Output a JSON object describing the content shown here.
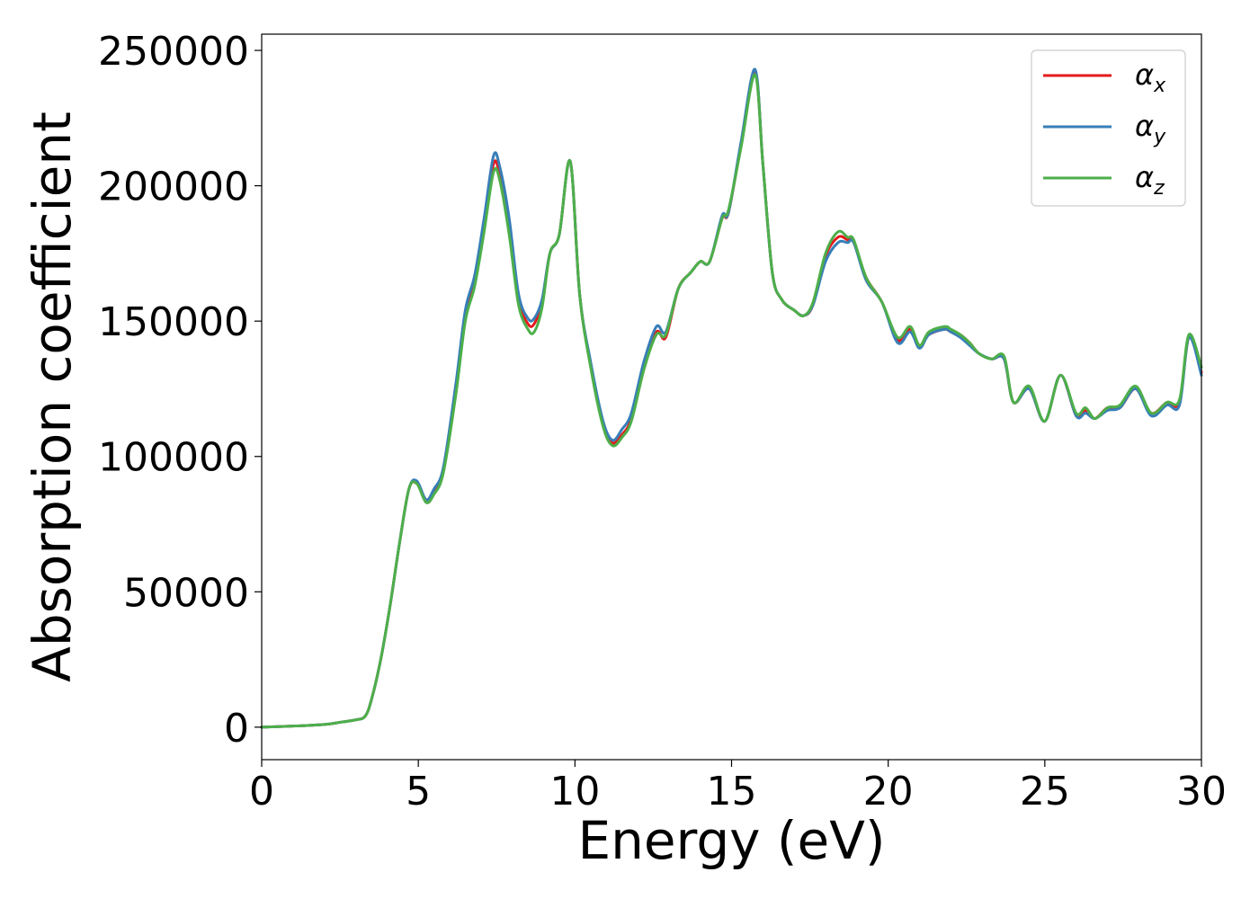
{
  "chart_data": {
    "type": "line",
    "title": "",
    "xlabel": "Energy (eV)",
    "ylabel": "Absorption coefficient",
    "xlim": [
      0,
      30
    ],
    "ylim": [
      -12000,
      256000
    ],
    "xticks": [
      0,
      5,
      10,
      15,
      20,
      25,
      30
    ],
    "yticks": [
      0,
      50000,
      100000,
      150000,
      200000,
      250000
    ],
    "xtick_labels": [
      "0",
      "5",
      "10",
      "15",
      "20",
      "25",
      "30"
    ],
    "ytick_labels": [
      "0",
      "50000",
      "100000",
      "150000",
      "200000",
      "250000"
    ],
    "grid": false,
    "legend_position": "top-right",
    "series": [
      {
        "name": "αx",
        "name_base": "α",
        "name_sub": "x",
        "color": "#e41a1c",
        "x": [
          0,
          1,
          2,
          2.5,
          3,
          3.3,
          3.5,
          3.8,
          4.1,
          4.4,
          4.7,
          4.95,
          5.25,
          5.5,
          5.8,
          6.2,
          6.5,
          6.8,
          7.1,
          7.4,
          7.6,
          7.9,
          8.2,
          8.5,
          8.7,
          8.95,
          9.2,
          9.5,
          9.85,
          10.15,
          10.5,
          10.9,
          11.2,
          11.5,
          11.8,
          12.2,
          12.6,
          12.9,
          13.3,
          13.7,
          14.0,
          14.3,
          14.7,
          14.9,
          15.3,
          15.75,
          16.0,
          16.3,
          16.6,
          17.0,
          17.3,
          17.6,
          18.0,
          18.4,
          18.7,
          18.9,
          19.3,
          19.8,
          20.3,
          20.7,
          21.0,
          21.3,
          21.8,
          22.0,
          22.3,
          22.6,
          22.9,
          23.3,
          23.7,
          24.0,
          24.5,
          25.0,
          25.5,
          26.0,
          26.3,
          26.6,
          27.0,
          27.4,
          27.9,
          28.4,
          28.9,
          29.3,
          29.6,
          30.0
        ],
        "y": [
          0,
          400,
          1000,
          1800,
          2700,
          4000,
          10000,
          25000,
          45000,
          68000,
          88000,
          90000,
          84000,
          87000,
          95000,
          125000,
          152000,
          165000,
          185000,
          208000,
          204000,
          185000,
          158000,
          149000,
          149000,
          157000,
          175000,
          182000,
          209000,
          160000,
          134000,
          112000,
          105000,
          108000,
          114000,
          133000,
          146000,
          144000,
          162000,
          168000,
          172000,
          172000,
          188000,
          190000,
          215000,
          242000,
          208000,
          168000,
          158000,
          154000,
          152000,
          156000,
          174000,
          181000,
          180000,
          179000,
          166000,
          157000,
          143000,
          147000,
          141000,
          145000,
          147000,
          146000,
          145000,
          142000,
          138000,
          136000,
          136000,
          120000,
          125000,
          113000,
          130000,
          115000,
          117000,
          114000,
          118000,
          118000,
          125000,
          116000,
          120000,
          120000,
          144000,
          131000
        ]
      },
      {
        "name": "αy",
        "name_base": "α",
        "name_sub": "y",
        "color": "#377eb8",
        "x": [
          0,
          1,
          2,
          2.5,
          3,
          3.3,
          3.5,
          3.8,
          4.1,
          4.4,
          4.7,
          4.95,
          5.25,
          5.5,
          5.8,
          6.2,
          6.5,
          6.8,
          7.1,
          7.4,
          7.6,
          7.9,
          8.2,
          8.5,
          8.7,
          8.95,
          9.2,
          9.5,
          9.85,
          10.15,
          10.5,
          10.9,
          11.2,
          11.5,
          11.8,
          12.2,
          12.6,
          12.9,
          13.3,
          13.7,
          14.0,
          14.3,
          14.7,
          14.9,
          15.3,
          15.75,
          16.0,
          16.3,
          16.6,
          17.0,
          17.3,
          17.6,
          18.0,
          18.4,
          18.7,
          18.9,
          19.3,
          19.8,
          20.3,
          20.7,
          21.0,
          21.3,
          21.8,
          22.0,
          22.3,
          22.6,
          22.9,
          23.3,
          23.7,
          24.0,
          24.5,
          25.0,
          25.5,
          26.0,
          26.3,
          26.6,
          27.0,
          27.4,
          27.9,
          28.4,
          28.9,
          29.3,
          29.6,
          30.0
        ],
        "y": [
          0,
          400,
          1000,
          1800,
          2700,
          4000,
          10000,
          25000,
          45000,
          68000,
          88000,
          91000,
          84000,
          88000,
          96000,
          127000,
          154000,
          167000,
          188000,
          211000,
          207000,
          188000,
          160000,
          151000,
          151000,
          158000,
          175000,
          182000,
          209000,
          160000,
          135000,
          113000,
          106000,
          110000,
          116000,
          135000,
          148000,
          146000,
          162000,
          168000,
          172000,
          172000,
          189000,
          190000,
          216000,
          243000,
          208000,
          168000,
          158000,
          154000,
          152000,
          156000,
          172000,
          179000,
          179000,
          179000,
          165000,
          157000,
          142000,
          146000,
          140000,
          145000,
          147000,
          146000,
          144000,
          141000,
          138000,
          136000,
          136000,
          120000,
          125000,
          113000,
          130000,
          115000,
          116000,
          114000,
          117000,
          118000,
          125000,
          115000,
          119000,
          119000,
          144000,
          130000
        ]
      },
      {
        "name": "αz",
        "name_base": "α",
        "name_sub": "z",
        "color": "#4daf4a",
        "x": [
          0,
          1,
          2,
          2.5,
          3,
          3.3,
          3.5,
          3.8,
          4.1,
          4.4,
          4.7,
          4.95,
          5.25,
          5.5,
          5.8,
          6.2,
          6.5,
          6.8,
          7.1,
          7.4,
          7.6,
          7.9,
          8.2,
          8.5,
          8.7,
          8.95,
          9.2,
          9.5,
          9.85,
          10.15,
          10.5,
          10.9,
          11.2,
          11.5,
          11.8,
          12.2,
          12.6,
          12.9,
          13.3,
          13.7,
          14.0,
          14.3,
          14.7,
          14.9,
          15.3,
          15.75,
          16.0,
          16.3,
          16.6,
          17.0,
          17.3,
          17.6,
          18.0,
          18.4,
          18.7,
          18.9,
          19.3,
          19.8,
          20.3,
          20.7,
          21.0,
          21.3,
          21.8,
          22.0,
          22.3,
          22.6,
          22.9,
          23.3,
          23.7,
          24.0,
          24.5,
          25.0,
          25.5,
          26.0,
          26.3,
          26.6,
          27.0,
          27.4,
          27.9,
          28.4,
          28.9,
          29.3,
          29.6,
          30.0
        ],
        "y": [
          0,
          400,
          1000,
          1800,
          2700,
          4000,
          10000,
          25000,
          45000,
          68000,
          88000,
          90000,
          83000,
          86000,
          94000,
          123000,
          150000,
          163000,
          183000,
          205000,
          202000,
          182000,
          156000,
          147000,
          146000,
          155000,
          175000,
          182000,
          209000,
          160000,
          133000,
          111000,
          104000,
          107000,
          113000,
          132000,
          145000,
          145000,
          162000,
          168000,
          172000,
          172000,
          188000,
          191000,
          214000,
          241000,
          208000,
          168000,
          158000,
          154000,
          152000,
          157000,
          175000,
          183000,
          181000,
          180000,
          166000,
          157000,
          144000,
          148000,
          141000,
          146000,
          148000,
          147000,
          145000,
          142000,
          138000,
          136000,
          137000,
          120000,
          126000,
          113000,
          130000,
          116000,
          118000,
          114000,
          118000,
          119000,
          126000,
          116000,
          120000,
          121000,
          145000,
          133000
        ]
      }
    ]
  }
}
